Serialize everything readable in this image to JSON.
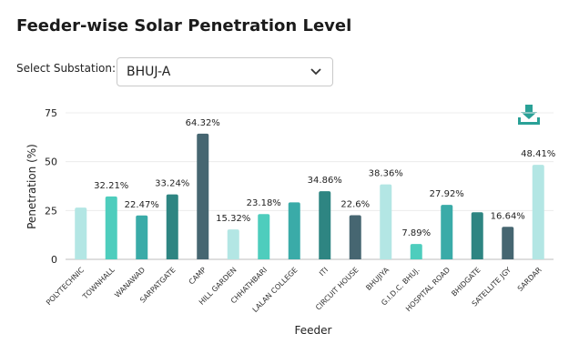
{
  "title": "Feeder-wise Solar Penetration Level",
  "filter": {
    "label": "Select Substation:",
    "selected": "BHUJ-A"
  },
  "icons": {
    "dropdown": "chevron-down-icon",
    "download": "download-icon"
  },
  "colors": {
    "download_icon": "#2aa197"
  },
  "chart_data": {
    "type": "bar",
    "title": "",
    "xlabel": "Feeder",
    "ylabel": "Penetration (%)",
    "ylim": [
      0,
      75
    ],
    "yticks": [
      0,
      25,
      50,
      75
    ],
    "grid": true,
    "categories": [
      "POLYTECHNIC",
      "TOWNHALL",
      "WANAWAD",
      "SARPATGATE",
      "CAMP",
      "HILL GARDEN",
      "CHHATHBARI",
      "LALAN COLLEGE",
      "ITI",
      "CIRCUIT HOUSE",
      "BHUJIYA",
      "G.I.D.C. BHUJ.",
      "HOSPITAL ROAD",
      "BHIDGATE",
      "SATELLITE JGY",
      "SARDAR"
    ],
    "values": [
      26.5,
      32.21,
      22.47,
      33.24,
      64.32,
      15.32,
      23.18,
      29.2,
      34.86,
      22.6,
      38.36,
      7.89,
      27.92,
      24.1,
      16.64,
      48.41
    ],
    "data_labels": [
      "",
      "32.21%",
      "22.47%",
      "33.24%",
      "64.32%",
      "15.32%",
      "23.18%",
      "",
      "34.86%",
      "22.6%",
      "38.36%",
      "7.89%",
      "27.92%",
      "",
      "16.64%",
      "48.41%"
    ],
    "bar_colors": [
      "#b3e6e4",
      "#4ecdbd",
      "#3aaba8",
      "#2e8582",
      "#466671",
      "#b3e6e4",
      "#4ecdbd",
      "#3aaba8",
      "#2e8582",
      "#466671",
      "#b3e6e4",
      "#4ecdbd",
      "#3aaba8",
      "#2e8582",
      "#466671",
      "#b3e6e4"
    ]
  }
}
